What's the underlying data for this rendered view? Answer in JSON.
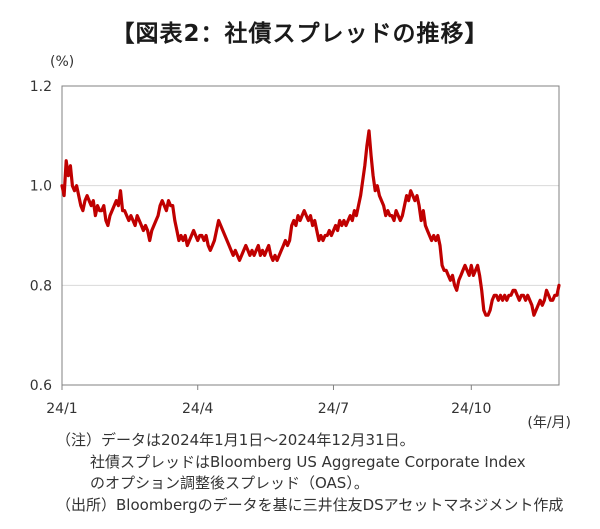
{
  "title": "【図表2：社債スプレッドの推移】",
  "chart_data": {
    "type": "line",
    "ylabel": "(%)",
    "xunit": "(年/月)",
    "ylim": [
      0.6,
      1.2
    ],
    "yticks": [
      "0.6",
      "0.8",
      "1.0",
      "1.2"
    ],
    "xticks": [
      {
        "label": "24/1",
        "index": 0
      },
      {
        "label": "24/4",
        "index": 65
      },
      {
        "label": "24/7",
        "index": 130
      },
      {
        "label": "24/10",
        "index": 196
      }
    ],
    "grid": true,
    "line_color": "#c00000",
    "series": [
      {
        "values": [
          1.0,
          0.98,
          1.05,
          1.02,
          1.04,
          1.0,
          0.99,
          1.0,
          0.98,
          0.96,
          0.95,
          0.97,
          0.98,
          0.97,
          0.96,
          0.97,
          0.94,
          0.96,
          0.95,
          0.95,
          0.96,
          0.93,
          0.92,
          0.94,
          0.95,
          0.96,
          0.97,
          0.96,
          0.99,
          0.95,
          0.95,
          0.94,
          0.93,
          0.94,
          0.93,
          0.92,
          0.94,
          0.93,
          0.92,
          0.91,
          0.92,
          0.91,
          0.89,
          0.91,
          0.92,
          0.93,
          0.94,
          0.96,
          0.97,
          0.96,
          0.95,
          0.97,
          0.96,
          0.96,
          0.93,
          0.91,
          0.89,
          0.9,
          0.89,
          0.9,
          0.88,
          0.89,
          0.9,
          0.91,
          0.9,
          0.89,
          0.9,
          0.9,
          0.89,
          0.9,
          0.88,
          0.87,
          0.88,
          0.89,
          0.91,
          0.93,
          0.92,
          0.91,
          0.9,
          0.89,
          0.88,
          0.87,
          0.86,
          0.87,
          0.86,
          0.85,
          0.86,
          0.87,
          0.88,
          0.87,
          0.86,
          0.87,
          0.86,
          0.87,
          0.88,
          0.86,
          0.87,
          0.86,
          0.87,
          0.88,
          0.86,
          0.85,
          0.86,
          0.85,
          0.86,
          0.87,
          0.88,
          0.89,
          0.88,
          0.89,
          0.92,
          0.93,
          0.92,
          0.94,
          0.93,
          0.94,
          0.95,
          0.94,
          0.93,
          0.94,
          0.92,
          0.93,
          0.91,
          0.89,
          0.9,
          0.89,
          0.9,
          0.9,
          0.91,
          0.9,
          0.91,
          0.92,
          0.91,
          0.93,
          0.92,
          0.93,
          0.92,
          0.93,
          0.94,
          0.93,
          0.95,
          0.94,
          0.96,
          0.98,
          1.01,
          1.04,
          1.08,
          1.11,
          1.06,
          1.02,
          0.99,
          1.0,
          0.98,
          0.97,
          0.96,
          0.94,
          0.95,
          0.94,
          0.94,
          0.93,
          0.95,
          0.94,
          0.93,
          0.94,
          0.96,
          0.98,
          0.97,
          0.99,
          0.98,
          0.97,
          0.98,
          0.96,
          0.93,
          0.95,
          0.92,
          0.91,
          0.9,
          0.89,
          0.9,
          0.89,
          0.9,
          0.88,
          0.84,
          0.83,
          0.83,
          0.82,
          0.81,
          0.82,
          0.8,
          0.79,
          0.81,
          0.82,
          0.83,
          0.84,
          0.83,
          0.82,
          0.84,
          0.82,
          0.83,
          0.84,
          0.82,
          0.79,
          0.75,
          0.74,
          0.74,
          0.75,
          0.77,
          0.78,
          0.78,
          0.77,
          0.78,
          0.77,
          0.78,
          0.77,
          0.78,
          0.78,
          0.79,
          0.79,
          0.78,
          0.77,
          0.78,
          0.78,
          0.77,
          0.78,
          0.77,
          0.76,
          0.74,
          0.75,
          0.76,
          0.77,
          0.76,
          0.77,
          0.79,
          0.78,
          0.77,
          0.77,
          0.78,
          0.78,
          0.8
        ]
      }
    ]
  },
  "notes": [
    "（注）データは2024年1月1日～2024年12月31日。",
    "社債スプレッドはBloomberg US Aggregate Corporate Index",
    "のオプション調整後スプレッド（OAS）。",
    "（出所）Bloombergのデータを基に三井住友DSアセットマネジメント作成"
  ]
}
